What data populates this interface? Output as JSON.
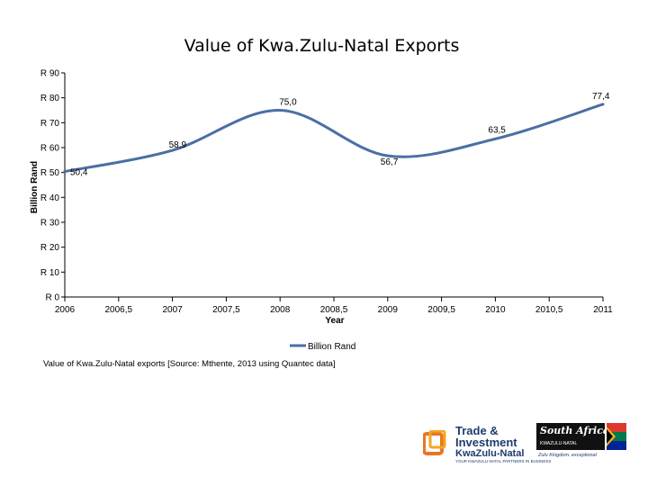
{
  "chart_data": {
    "type": "line",
    "title": "Value of Kwa.Zulu-Natal Exports",
    "xlabel": "Year",
    "ylabel": "Billion Rand",
    "x": [
      2006,
      2007,
      2008,
      2009,
      2010,
      2011
    ],
    "series": [
      {
        "name": "Billion Rand",
        "values": [
          50.4,
          58.9,
          75.0,
          56.7,
          63.5,
          77.4
        ]
      }
    ],
    "data_labels": [
      "50,4",
      "58,9",
      "75,0",
      "56,7",
      "63,5",
      "77,4"
    ],
    "xlim": [
      2006,
      2011
    ],
    "ylim": [
      0,
      90
    ],
    "x_ticks": [
      "2006",
      "2006,5",
      "2007",
      "2007,5",
      "2008",
      "2008,5",
      "2009",
      "2009,5",
      "2010",
      "2010,5",
      "2011"
    ],
    "y_ticks": [
      "R 0",
      "R 10",
      "R 20",
      "R 30",
      "R 40",
      "R 50",
      "R 60",
      "R 70",
      "R 80",
      "R 90"
    ],
    "line_color": "#4a6fa5",
    "legend_position": "bottom"
  },
  "caption": "Value of Kwa.Zulu-Natal exports [Source: Mthente, 2013 using Quantec data]",
  "logos": {
    "trade_title": "Trade & Investment",
    "trade_brand": "KwaZulu-Natal",
    "trade_slogan": "YOUR KWAZULU-NATAL PARTNERS IN BUSINESS",
    "sa_title": "South Africa",
    "sa_region": "KWAZULU-NATAL",
    "sa_tagline": "Zulu Kingdom. exceptional"
  }
}
